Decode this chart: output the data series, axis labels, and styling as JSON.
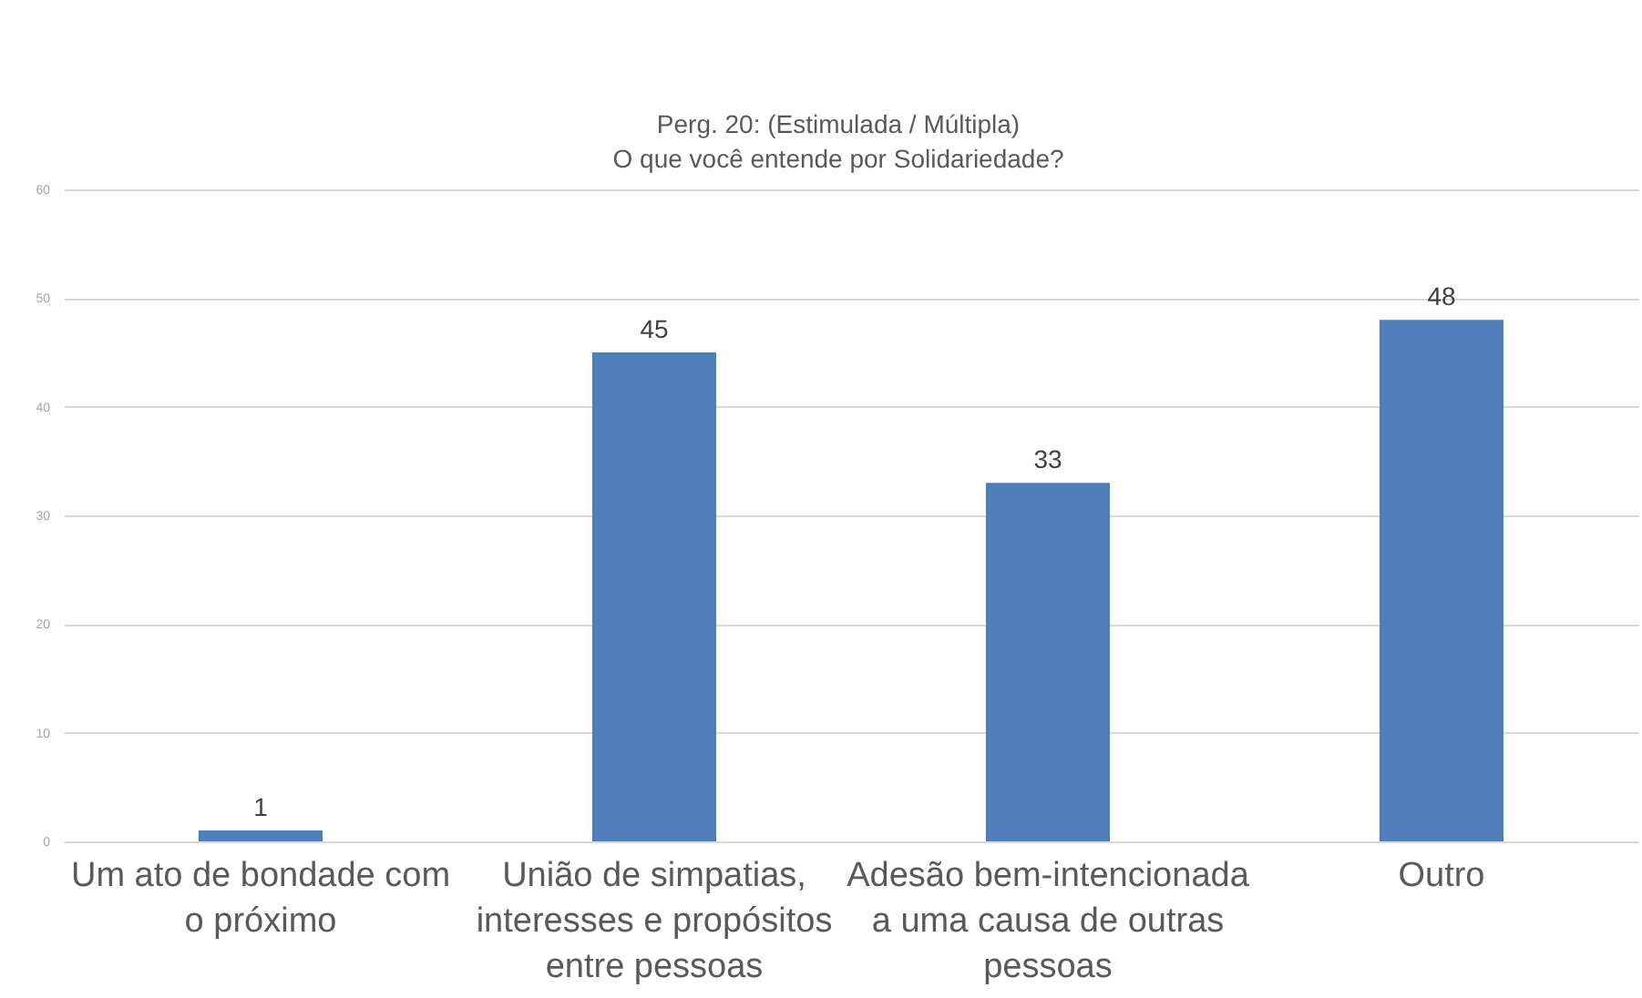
{
  "chart_data": {
    "type": "bar",
    "title": "Perg. 20: (Estimulada / Múltipla)",
    "subtitle": "O que você entende por Solidariedade?",
    "categories": [
      "Um ato de bondade com o próximo",
      "União de simpatias, interesses e propósitos entre pessoas",
      "Adesão bem-intencionada a uma causa de outras pessoas",
      "Outro"
    ],
    "values": [
      1,
      45,
      33,
      48
    ],
    "color": "#4f7fbb",
    "ylim": [
      0,
      60
    ],
    "yticks": [
      0,
      10,
      20,
      30,
      40,
      50,
      60
    ],
    "grid": "y",
    "data_labels": true
  }
}
